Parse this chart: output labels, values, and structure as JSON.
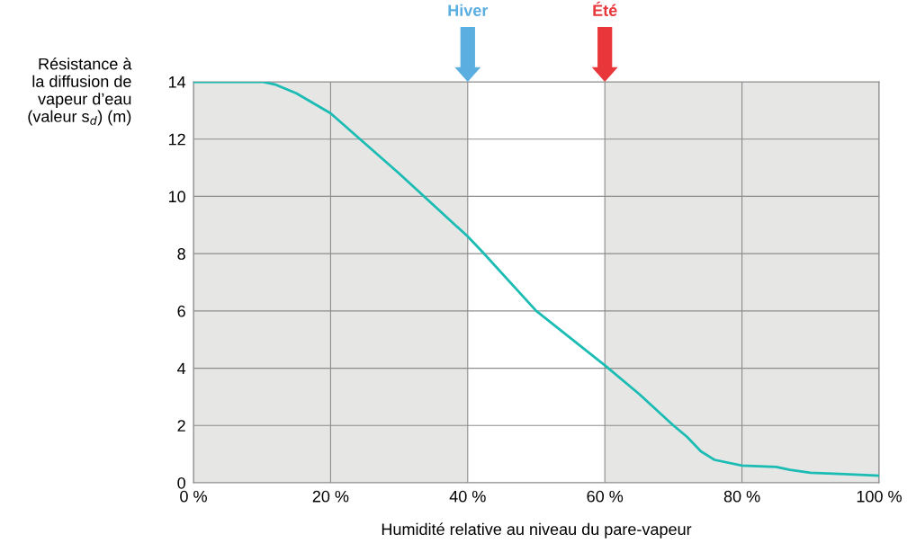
{
  "chart_data": {
    "type": "line",
    "xlabel": "Humidité relative au niveau du pare-vapeur",
    "ylabel": "Résistance à\nla diffusion de\nvapeur d’eau\n(valeur s$_{d}$) (m)",
    "x": [
      0,
      10,
      12,
      15,
      20,
      30,
      40,
      42,
      50,
      60,
      65,
      70,
      72,
      74,
      76,
      80,
      85,
      87,
      90,
      95,
      100
    ],
    "series": [
      {
        "color": "#1bbcb3",
        "values": [
          14,
          14,
          13.9,
          13.6,
          12.9,
          10.8,
          8.6,
          8.1,
          6.0,
          4.1,
          3.1,
          2.0,
          1.6,
          1.1,
          0.8,
          0.6,
          0.55,
          0.45,
          0.35,
          0.3,
          0.25
        ]
      }
    ],
    "xlim": [
      0,
      100
    ],
    "ylim": [
      0,
      14
    ],
    "xticks": [
      {
        "value": 0,
        "label": "0 %"
      },
      {
        "value": 20,
        "label": "20 %"
      },
      {
        "value": 40,
        "label": "40 %"
      },
      {
        "value": 60,
        "label": "60 %"
      },
      {
        "value": 80,
        "label": "80 %"
      },
      {
        "value": 100,
        "label": "100 %"
      }
    ],
    "yticks": [
      0,
      2,
      4,
      6,
      8,
      10,
      12,
      14
    ],
    "grid": true,
    "legend": false,
    "marker": "none",
    "line_style": "solid",
    "bands": [
      {
        "axis": "x",
        "from": 0,
        "to": 40,
        "color": "#e6e6e5"
      },
      {
        "axis": "x",
        "from": 60,
        "to": 100,
        "color": "#e6e6e5"
      }
    ],
    "annotations": [
      "Hiver",
      "Été"
    ]
  }
}
